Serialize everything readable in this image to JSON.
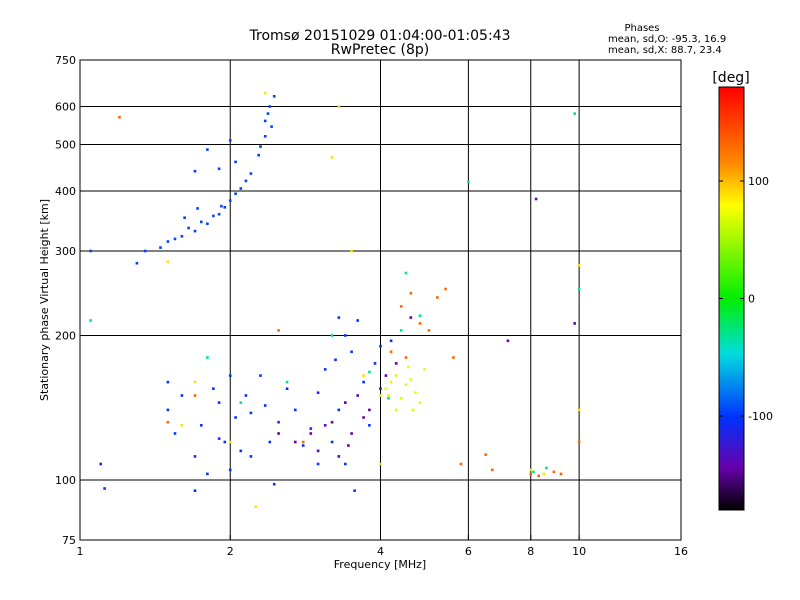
{
  "chart_data": {
    "type": "scatter",
    "title": "Tromsø 20151029 01:04:00-01:05:43",
    "subtitle": "RwPretec (8p)",
    "xlabel": "Frequency [MHz]",
    "ylabel": "Stationary phase Virtual Height [km]",
    "x_scale": "log",
    "y_scale": "log",
    "xlim": [
      1,
      16
    ],
    "ylim": [
      75,
      750
    ],
    "x_ticks": [
      1,
      2,
      4,
      6,
      8,
      10,
      16
    ],
    "y_ticks": [
      75,
      100,
      200,
      300,
      400,
      500,
      600,
      750
    ],
    "grid": true,
    "phase_box": {
      "title": "Phases",
      "line_o": "mean, sd,O: -95.3, 16.9",
      "line_x": "mean, sd,X:  88.7, 23.4"
    },
    "colorbar": {
      "label": "[deg]",
      "ticks": [
        100,
        0,
        -100
      ],
      "range": [
        -180,
        180
      ]
    },
    "series": [
      {
        "phase": -95,
        "points": [
          [
            1.5,
            314
          ],
          [
            1.6,
            322
          ],
          [
            1.7,
            330
          ],
          [
            1.8,
            342
          ],
          [
            1.9,
            358
          ],
          [
            1.95,
            370
          ],
          [
            2.0,
            382
          ],
          [
            2.05,
            395
          ],
          [
            2.1,
            405
          ],
          [
            2.15,
            420
          ],
          [
            2.2,
            435
          ],
          [
            1.75,
            345
          ],
          [
            1.85,
            355
          ],
          [
            1.65,
            335
          ],
          [
            1.55,
            318
          ],
          [
            1.45,
            305
          ],
          [
            1.35,
            300
          ],
          [
            1.3,
            283
          ],
          [
            1.05,
            300
          ],
          [
            1.8,
            488
          ],
          [
            2.0,
            510
          ],
          [
            2.35,
            560
          ],
          [
            2.4,
            600
          ],
          [
            2.45,
            630
          ],
          [
            2.38,
            580
          ],
          [
            2.42,
            545
          ],
          [
            2.35,
            520
          ],
          [
            2.3,
            495
          ],
          [
            2.28,
            475
          ],
          [
            1.7,
            440
          ],
          [
            1.9,
            445
          ],
          [
            2.05,
            460
          ],
          [
            1.62,
            352
          ],
          [
            1.72,
            368
          ],
          [
            1.92,
            372
          ]
        ]
      },
      {
        "phase": -100,
        "points": [
          [
            1.1,
            108
          ],
          [
            1.12,
            96
          ],
          [
            1.5,
            160
          ],
          [
            1.5,
            140
          ],
          [
            1.55,
            125
          ],
          [
            1.6,
            150
          ],
          [
            1.7,
            112
          ],
          [
            1.7,
            95
          ],
          [
            1.75,
            130
          ],
          [
            1.8,
            103
          ],
          [
            1.85,
            155
          ],
          [
            1.9,
            145
          ],
          [
            1.95,
            120
          ],
          [
            2.0,
            165
          ],
          [
            2.05,
            135
          ],
          [
            2.1,
            115
          ],
          [
            2.15,
            150
          ],
          [
            2.2,
            138
          ],
          [
            2.3,
            165
          ],
          [
            2.35,
            143
          ],
          [
            2.4,
            120
          ],
          [
            2.5,
            132
          ],
          [
            2.6,
            155
          ],
          [
            2.7,
            140
          ],
          [
            2.8,
            118
          ],
          [
            2.9,
            128
          ],
          [
            3.0,
            152
          ],
          [
            3.1,
            170
          ],
          [
            3.2,
            120
          ],
          [
            3.3,
            140
          ],
          [
            3.4,
            108
          ],
          [
            3.5,
            185
          ],
          [
            3.55,
            95
          ],
          [
            3.6,
            215
          ],
          [
            3.4,
            200
          ],
          [
            3.7,
            160
          ],
          [
            3.8,
            130
          ],
          [
            3.9,
            175
          ],
          [
            4.0,
            190
          ],
          [
            4.2,
            195
          ],
          [
            3.3,
            218
          ],
          [
            2.2,
            112
          ],
          [
            1.9,
            122
          ],
          [
            2.0,
            105
          ],
          [
            2.45,
            98
          ],
          [
            3.0,
            108
          ],
          [
            3.25,
            178
          ]
        ]
      },
      {
        "phase": -140,
        "points": [
          [
            2.7,
            120
          ],
          [
            2.9,
            125
          ],
          [
            3.0,
            115
          ],
          [
            3.2,
            132
          ],
          [
            3.4,
            145
          ],
          [
            3.5,
            125
          ],
          [
            3.6,
            150
          ],
          [
            3.8,
            140
          ],
          [
            4.0,
            155
          ],
          [
            4.1,
            165
          ],
          [
            4.3,
            175
          ],
          [
            2.5,
            125
          ],
          [
            3.1,
            130
          ],
          [
            3.3,
            112
          ],
          [
            3.7,
            135
          ],
          [
            4.6,
            218
          ],
          [
            7.2,
            195
          ],
          [
            8.2,
            385
          ],
          [
            9.8,
            212
          ],
          [
            3.45,
            118
          ]
        ]
      },
      {
        "phase": -30,
        "points": [
          [
            1.05,
            215
          ],
          [
            1.8,
            180
          ],
          [
            2.1,
            145
          ],
          [
            2.6,
            160
          ],
          [
            3.2,
            200
          ],
          [
            3.8,
            168
          ],
          [
            4.5,
            270
          ],
          [
            4.4,
            205
          ],
          [
            10.0,
            250
          ],
          [
            9.8,
            580
          ],
          [
            8.6,
            106
          ],
          [
            8.1,
            104
          ],
          [
            4.8,
            220
          ],
          [
            6.0,
            418
          ],
          [
            4.15,
            148
          ]
        ]
      },
      {
        "phase": 90,
        "points": [
          [
            4.0,
            150
          ],
          [
            4.1,
            155
          ],
          [
            4.2,
            160
          ],
          [
            4.3,
            165
          ],
          [
            4.4,
            148
          ],
          [
            4.5,
            158
          ],
          [
            4.6,
            162
          ],
          [
            4.7,
            152
          ],
          [
            4.8,
            145
          ],
          [
            4.9,
            170
          ],
          [
            4.3,
            140
          ],
          [
            4.55,
            172
          ],
          [
            4.15,
            150
          ],
          [
            4.65,
            140
          ]
        ]
      },
      {
        "phase": 110,
        "points": [
          [
            1.5,
            285
          ],
          [
            1.6,
            130
          ],
          [
            2.35,
            640
          ],
          [
            3.3,
            600
          ],
          [
            3.2,
            470
          ],
          [
            4.0,
            108
          ],
          [
            3.7,
            165
          ],
          [
            2.25,
            88
          ],
          [
            3.5,
            300
          ],
          [
            10.0,
            280
          ],
          [
            10.0,
            140
          ],
          [
            8.5,
            103
          ],
          [
            8.0,
            105
          ],
          [
            1.7,
            160
          ],
          [
            2.0,
            120
          ]
        ]
      },
      {
        "phase": 150,
        "points": [
          [
            1.2,
            570
          ],
          [
            4.2,
            185
          ],
          [
            4.4,
            230
          ],
          [
            4.6,
            245
          ],
          [
            4.8,
            212
          ],
          [
            5.0,
            205
          ],
          [
            5.2,
            240
          ],
          [
            5.4,
            250
          ],
          [
            5.6,
            180
          ],
          [
            5.8,
            108
          ],
          [
            6.5,
            113
          ],
          [
            6.7,
            105
          ],
          [
            8.0,
            103
          ],
          [
            8.3,
            102
          ],
          [
            8.9,
            104
          ],
          [
            9.2,
            103
          ],
          [
            2.5,
            205
          ],
          [
            4.5,
            180
          ],
          [
            1.5,
            132
          ],
          [
            1.7,
            150
          ],
          [
            2.8,
            120
          ],
          [
            10.0,
            120
          ]
        ]
      }
    ]
  }
}
